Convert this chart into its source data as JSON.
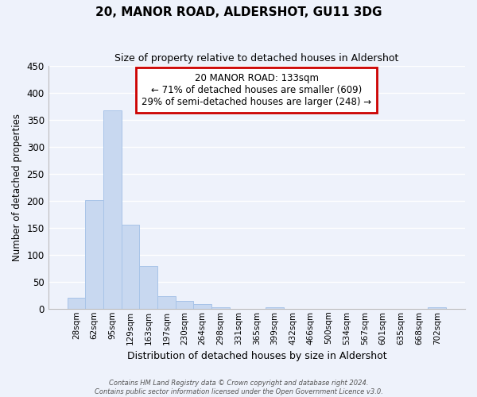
{
  "title": "20, MANOR ROAD, ALDERSHOT, GU11 3DG",
  "subtitle": "Size of property relative to detached houses in Aldershot",
  "xlabel": "Distribution of detached houses by size in Aldershot",
  "ylabel": "Number of detached properties",
  "bar_color": "#c8d8f0",
  "bar_edge_color": "#a8c4e8",
  "background_color": "#eef2fb",
  "grid_color": "#ffffff",
  "bin_labels": [
    "28sqm",
    "62sqm",
    "95sqm",
    "129sqm",
    "163sqm",
    "197sqm",
    "230sqm",
    "264sqm",
    "298sqm",
    "331sqm",
    "365sqm",
    "399sqm",
    "432sqm",
    "466sqm",
    "500sqm",
    "534sqm",
    "567sqm",
    "601sqm",
    "635sqm",
    "668sqm",
    "702sqm"
  ],
  "bar_heights": [
    20,
    202,
    367,
    155,
    79,
    23,
    15,
    8,
    3,
    0,
    0,
    2,
    0,
    0,
    0,
    0,
    0,
    0,
    0,
    0,
    3
  ],
  "ylim": [
    0,
    450
  ],
  "yticks": [
    0,
    50,
    100,
    150,
    200,
    250,
    300,
    350,
    400,
    450
  ],
  "property_label": "20 MANOR ROAD: 133sqm",
  "annotation_line1": "← 71% of detached houses are smaller (609)",
  "annotation_line2": "29% of semi-detached houses are larger (248) →",
  "annotation_box_color": "#ffffff",
  "annotation_box_edge_color": "#cc0000",
  "footer_line1": "Contains HM Land Registry data © Crown copyright and database right 2024.",
  "footer_line2": "Contains public sector information licensed under the Open Government Licence v3.0."
}
